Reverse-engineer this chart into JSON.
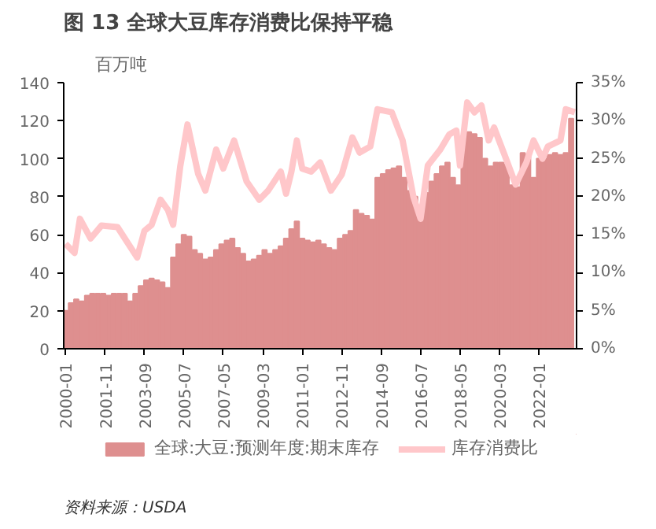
{
  "chart_data": {
    "type": "bar",
    "title": "图 13  全球大豆库存消费比保持平稳",
    "ylabel": "百万吨",
    "annotations": [
      "资料来源：USDA"
    ],
    "xlim": [
      "1999-12",
      "2023-10"
    ],
    "ylim": [
      0,
      140
    ],
    "yticks": [
      0,
      20,
      40,
      60,
      80,
      100,
      120,
      140
    ],
    "y2lim": [
      0,
      35
    ],
    "y2ticks": [
      {
        "value": 0,
        "label": "0%"
      },
      {
        "value": 5,
        "label": "5%"
      },
      {
        "value": 10,
        "label": "10%"
      },
      {
        "value": 15,
        "label": "15%"
      },
      {
        "value": 20,
        "label": "20%"
      },
      {
        "value": 25,
        "label": "25%"
      },
      {
        "value": 30,
        "label": "30%"
      },
      {
        "value": 35,
        "label": "35%"
      }
    ],
    "xticks": [
      {
        "value": "2000-01",
        "label": "2000-01"
      },
      {
        "value": "2001-11",
        "label": "2001-11"
      },
      {
        "value": "2003-09",
        "label": "2003-09"
      },
      {
        "value": "2005-07",
        "label": "2005-07"
      },
      {
        "value": "2007-05",
        "label": "2007-05"
      },
      {
        "value": "2009-03",
        "label": "2009-03"
      },
      {
        "value": "2011-01",
        "label": "2011-01"
      },
      {
        "value": "2012-11",
        "label": "2012-11"
      },
      {
        "value": "2014-09",
        "label": "2014-09"
      },
      {
        "value": "2016-07",
        "label": "2016-07"
      },
      {
        "value": "2018-05",
        "label": "2018-05"
      },
      {
        "value": "2020-03",
        "label": "2020-03"
      },
      {
        "value": "2022-01",
        "label": "2022-01"
      }
    ],
    "legend": "bottom",
    "grid": false,
    "series": [
      {
        "name": "全球:大豆:预测年度:期末库存",
        "color": "#de8f8f",
        "x": [
          "2000-01",
          "2000-04",
          "2000-07",
          "2000-10",
          "2001-01",
          "2001-04",
          "2001-07",
          "2001-10",
          "2002-01",
          "2002-04",
          "2002-07",
          "2002-10",
          "2003-01",
          "2003-04",
          "2003-07",
          "2003-10",
          "2004-01",
          "2004-04",
          "2004-07",
          "2004-10",
          "2005-01",
          "2005-04",
          "2005-07",
          "2005-10",
          "2006-01",
          "2006-04",
          "2006-07",
          "2006-10",
          "2007-01",
          "2007-04",
          "2007-07",
          "2007-10",
          "2008-01",
          "2008-04",
          "2008-07",
          "2008-10",
          "2009-01",
          "2009-04",
          "2009-07",
          "2009-10",
          "2010-01",
          "2010-04",
          "2010-07",
          "2010-10",
          "2011-01",
          "2011-04",
          "2011-07",
          "2011-10",
          "2012-01",
          "2012-04",
          "2012-07",
          "2012-10",
          "2013-01",
          "2013-04",
          "2013-07",
          "2013-10",
          "2014-01",
          "2014-04",
          "2014-07",
          "2014-10",
          "2015-01",
          "2015-04",
          "2015-07",
          "2015-10",
          "2016-01",
          "2016-04",
          "2016-07",
          "2016-10",
          "2017-01",
          "2017-04",
          "2017-07",
          "2017-10",
          "2018-01",
          "2018-04",
          "2018-07",
          "2018-10",
          "2019-01",
          "2019-04",
          "2019-07",
          "2019-10",
          "2020-01",
          "2020-04",
          "2020-07",
          "2020-10",
          "2021-01",
          "2021-04",
          "2021-07",
          "2021-10",
          "2022-01",
          "2022-04",
          "2022-07",
          "2022-10",
          "2023-01",
          "2023-04",
          "2023-07"
        ],
        "values": [
          20,
          24,
          26,
          25,
          28,
          29,
          29,
          29,
          28,
          29,
          29,
          29,
          25,
          29,
          33,
          36,
          37,
          36,
          35,
          32,
          48,
          55,
          60,
          59,
          52,
          50,
          47,
          48,
          52,
          55,
          57,
          58,
          53,
          50,
          46,
          47,
          49,
          52,
          50,
          52,
          54,
          58,
          63,
          67,
          58,
          57,
          56,
          57,
          55,
          53,
          52,
          58,
          60,
          62,
          73,
          71,
          70,
          68,
          90,
          92,
          94,
          95,
          96,
          90,
          83,
          80,
          68,
          82,
          88,
          92,
          96,
          98,
          90,
          86,
          112,
          114,
          113,
          111,
          100,
          96,
          98,
          98,
          97,
          86,
          85,
          103,
          102,
          90,
          100,
          100,
          102,
          103,
          102,
          103,
          121
        ]
      },
      {
        "name": "库存消费比",
        "type": "line",
        "axis": "y2",
        "color": "#ffc7ca",
        "x": [
          "2000-01",
          "2000-06",
          "2000-09",
          "2001-03",
          "2001-09",
          "2002-06",
          "2003-05",
          "2003-09",
          "2004-01",
          "2004-06",
          "2004-10",
          "2005-01",
          "2005-05",
          "2005-09",
          "2006-03",
          "2006-07",
          "2007-01",
          "2007-05",
          "2007-11",
          "2008-06",
          "2009-01",
          "2009-06",
          "2010-01",
          "2010-04",
          "2010-07",
          "2010-10",
          "2011-01",
          "2011-06",
          "2011-11",
          "2012-05",
          "2012-11",
          "2013-05",
          "2013-09",
          "2014-03",
          "2014-07",
          "2015-03",
          "2015-09",
          "2016-03",
          "2016-07",
          "2016-11",
          "2017-06",
          "2017-11",
          "2018-03",
          "2018-05",
          "2018-09",
          "2019-01",
          "2019-05",
          "2019-09",
          "2019-12",
          "2020-06",
          "2020-12",
          "2021-06",
          "2021-10",
          "2022-03",
          "2022-06",
          "2023-01",
          "2023-04",
          "2023-09"
        ],
        "values": [
          13.8,
          12.6,
          17.1,
          14.5,
          16.2,
          16,
          12,
          15.5,
          16.3,
          19.6,
          18.3,
          16.3,
          24,
          29.5,
          23,
          20.8,
          26.2,
          23.7,
          27.4,
          22,
          19.6,
          20.8,
          23.3,
          20.4,
          23.3,
          27.4,
          23.7,
          23.3,
          24.5,
          20.8,
          22.9,
          27.8,
          25.8,
          26.6,
          31.5,
          31.1,
          27.4,
          20,
          17.1,
          24.1,
          26.2,
          28.2,
          28.7,
          24.1,
          32.4,
          31.1,
          32,
          27.4,
          29.1,
          25.4,
          21.6,
          24.5,
          27.4,
          25,
          26.6,
          27.4,
          31.5,
          31.1
        ]
      }
    ]
  }
}
